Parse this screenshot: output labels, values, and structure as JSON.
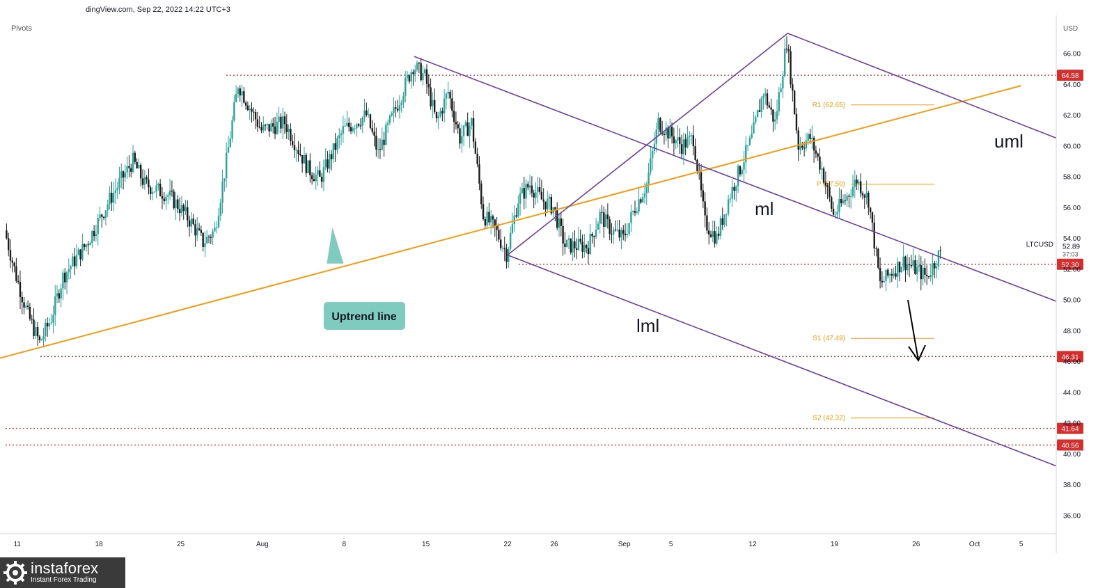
{
  "header": {
    "source_text": "dingView.com, Sep 22, 2022 14:22 UTC+3",
    "indicator": "Pivots"
  },
  "brand": {
    "name": "instaforex",
    "tagline": "Instant Forex Trading"
  },
  "chart_data": {
    "type": "candlestick",
    "symbol": "LTCUSD",
    "currency": "USD",
    "ylim": [
      34.8,
      68.2
    ],
    "y_ticks": [
      36,
      38,
      40,
      42,
      44,
      46,
      48,
      50,
      52,
      54,
      56,
      58,
      60,
      62,
      64,
      66
    ],
    "x_ticks": [
      "11",
      "18",
      "25",
      "Aug",
      "8",
      "15",
      "22",
      "26",
      "Sep",
      "5",
      "12",
      "19",
      "26",
      "Oct",
      "5"
    ],
    "x_dates": [
      "2022-07-11",
      "2022-07-18",
      "2022-07-25",
      "2022-08-01",
      "2022-08-08",
      "2022-08-15",
      "2022-08-22",
      "2022-08-26",
      "2022-09-01",
      "2022-09-05",
      "2022-09-12",
      "2022-09-19",
      "2022-09-26",
      "2022-10-01",
      "2022-10-05"
    ],
    "grid": false,
    "price_path": [
      [
        "2022-07-10",
        54.5
      ],
      [
        "2022-07-11",
        51.5
      ],
      [
        "2022-07-12",
        49.0
      ],
      [
        "2022-07-13",
        47.2
      ],
      [
        "2022-07-14",
        48.8
      ],
      [
        "2022-07-15",
        51.5
      ],
      [
        "2022-07-17",
        53.6
      ],
      [
        "2022-07-19",
        56.5
      ],
      [
        "2022-07-20",
        57.8
      ],
      [
        "2022-07-21",
        59.0
      ],
      [
        "2022-07-22",
        57.5
      ],
      [
        "2022-07-24",
        56.8
      ],
      [
        "2022-07-25",
        56.0
      ],
      [
        "2022-07-26",
        55.0
      ],
      [
        "2022-07-27",
        53.7
      ],
      [
        "2022-07-28",
        54.5
      ],
      [
        "2022-07-29",
        59.0
      ],
      [
        "2022-07-30",
        64.0
      ],
      [
        "2022-08-01",
        61.0
      ],
      [
        "2022-08-03",
        61.5
      ],
      [
        "2022-08-05",
        58.5
      ],
      [
        "2022-08-06",
        57.8
      ],
      [
        "2022-08-08",
        61.0
      ],
      [
        "2022-08-10",
        62.0
      ],
      [
        "2022-08-11",
        59.5
      ],
      [
        "2022-08-12",
        61.5
      ],
      [
        "2022-08-14",
        65.2
      ],
      [
        "2022-08-15",
        64.5
      ],
      [
        "2022-08-16",
        61.5
      ],
      [
        "2022-08-17",
        63.5
      ],
      [
        "2022-08-18",
        60.5
      ],
      [
        "2022-08-19",
        61.5
      ],
      [
        "2022-08-20",
        55.5
      ],
      [
        "2022-08-21",
        54.6
      ],
      [
        "2022-08-22",
        53.0
      ],
      [
        "2022-08-23",
        56.5
      ],
      [
        "2022-08-24",
        57.5
      ],
      [
        "2022-08-25",
        56.5
      ],
      [
        "2022-08-26",
        56.0
      ],
      [
        "2022-08-27",
        53.5
      ],
      [
        "2022-08-29",
        53.5
      ],
      [
        "2022-08-30",
        55.5
      ],
      [
        "2022-08-31",
        54.5
      ],
      [
        "2022-09-01",
        54.0
      ],
      [
        "2022-09-02",
        56.0
      ],
      [
        "2022-09-03",
        57.5
      ],
      [
        "2022-09-04",
        61.5
      ],
      [
        "2022-09-06",
        60.0
      ],
      [
        "2022-09-07",
        60.5
      ],
      [
        "2022-09-08",
        55.0
      ],
      [
        "2022-09-09",
        54.0
      ],
      [
        "2022-09-10",
        56.5
      ],
      [
        "2022-09-11",
        58.5
      ],
      [
        "2022-09-12",
        60.5
      ],
      [
        "2022-09-13",
        63.5
      ],
      [
        "2022-09-14",
        61.5
      ],
      [
        "2022-09-15",
        66.8
      ],
      [
        "2022-09-16",
        60.0
      ],
      [
        "2022-09-17",
        60.5
      ],
      [
        "2022-09-18",
        58.5
      ],
      [
        "2022-09-19",
        55.5
      ],
      [
        "2022-09-20",
        56.5
      ],
      [
        "2022-09-21",
        57.8
      ],
      [
        "2022-09-22",
        56.5
      ],
      [
        "2022-09-23",
        51.0
      ],
      [
        "2022-09-24",
        51.8
      ],
      [
        "2022-09-25",
        52.5
      ],
      [
        "2022-09-26",
        52.0
      ],
      [
        "2022-09-27",
        51.5
      ],
      [
        "2022-09-28",
        52.89
      ]
    ],
    "last_price": "52.89",
    "countdown": "37:03",
    "price_labels": [
      {
        "label": "64.58",
        "y": 64.58
      },
      {
        "label": "52.30",
        "y": 52.3
      },
      {
        "label": "46.31",
        "y": 46.31
      },
      {
        "label": "41.64",
        "y": 41.64
      },
      {
        "label": "40.56",
        "y": 40.56
      }
    ],
    "pivots": [
      {
        "label": "R1 (62.65)",
        "y": 62.65
      },
      {
        "label": "P (57.50)",
        "y": 57.5
      },
      {
        "label": "S1 (47.49)",
        "y": 47.49
      },
      {
        "label": "S2 (42.32)",
        "y": 42.32
      }
    ],
    "annotations": {
      "uptrend": "Uptrend line",
      "uml": "uml",
      "ml": "ml",
      "lml": "lml"
    },
    "colors": {
      "bull": "#26a69a",
      "bear": "#1a1a1a",
      "level": "#d32f2f",
      "pivot": "#f39c12",
      "pitchfork": "#6a3fa0",
      "uptrend": "#f39c12",
      "callout": "#7fcbbf"
    }
  }
}
